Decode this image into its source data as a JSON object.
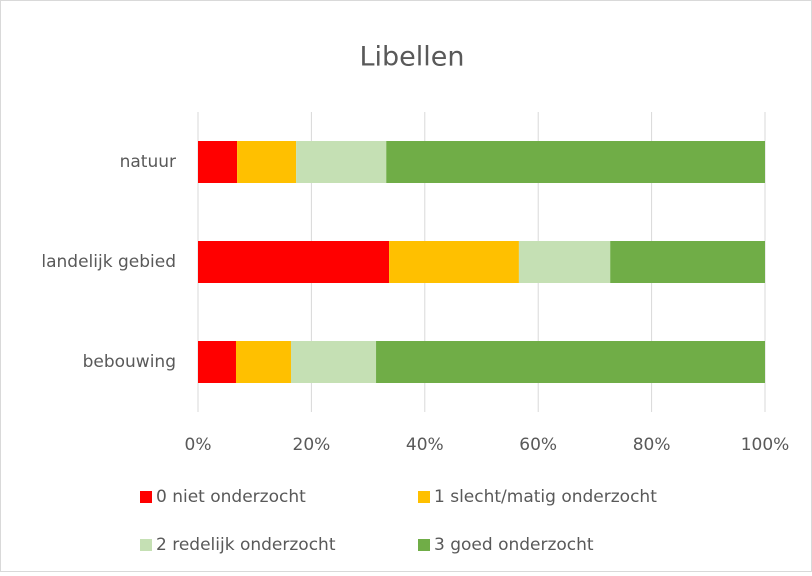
{
  "chart_data": {
    "type": "stacked_barh",
    "title": "Libellen",
    "categories": [
      "natuur",
      "landelijk gebied",
      "bebouwing"
    ],
    "series": [
      {
        "name": "0 niet onderzocht",
        "color": "#ff0000",
        "values": [
          6.9,
          33.7,
          6.7
        ]
      },
      {
        "name": "1 slecht/matig onderzocht",
        "color": "#ffc000",
        "values": [
          10.4,
          22.9,
          9.7
        ]
      },
      {
        "name": "2 redelijk onderzocht",
        "color": "#c5e0b4",
        "values": [
          15.9,
          16.1,
          15.0
        ]
      },
      {
        "name": "3 goed onderzocht",
        "color": "#70ad47",
        "values": [
          66.8,
          27.3,
          68.6
        ]
      }
    ],
    "xlim": [
      0,
      100
    ],
    "xticks": [
      {
        "value": 0,
        "label": "0%"
      },
      {
        "value": 20,
        "label": "20%"
      },
      {
        "value": 40,
        "label": "40%"
      },
      {
        "value": 60,
        "label": "60%"
      },
      {
        "value": 80,
        "label": "80%"
      },
      {
        "value": 100,
        "label": "100%"
      }
    ],
    "grid": true,
    "legend": "bottom"
  }
}
